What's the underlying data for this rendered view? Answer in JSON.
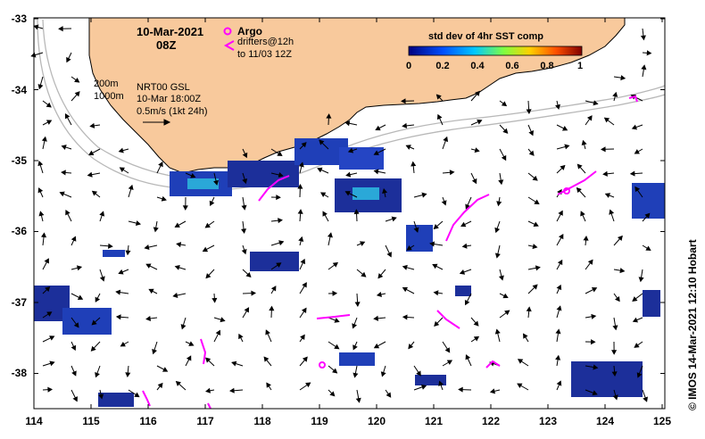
{
  "map": {
    "date": "10-Mar-2021",
    "hour": "08Z",
    "argo_label": "Argo",
    "drifters_label_1": "drifters@12h",
    "drifters_label_2": "to 11/03 12Z",
    "isobath_200": "200m",
    "isobath_1000": "1000m",
    "product": "NRT00 GSL",
    "product_time": "10-Mar 18:00Z",
    "scale_label": "0.5m/s (1kt 24h)",
    "colorbar_title": "std dev of 4hr SST comp",
    "colorbar_ticks": [
      "0",
      "0.2",
      "0.4",
      "0.6",
      "0.8",
      "1"
    ],
    "credit": "© IMOS 14-Mar-2021 12:10 Hobart",
    "lon_ticks": [
      "114",
      "115",
      "116",
      "117",
      "118",
      "119",
      "120",
      "121",
      "122",
      "123",
      "124",
      "125"
    ],
    "lat_ticks": [
      "-33",
      "-34",
      "-35",
      "-36",
      "-37",
      "-38"
    ],
    "colors": {
      "land": "#f8c99c",
      "argo": "#ff00ff",
      "drifter": "#ff00ff",
      "isobath": "#b8b8b8"
    }
  }
}
